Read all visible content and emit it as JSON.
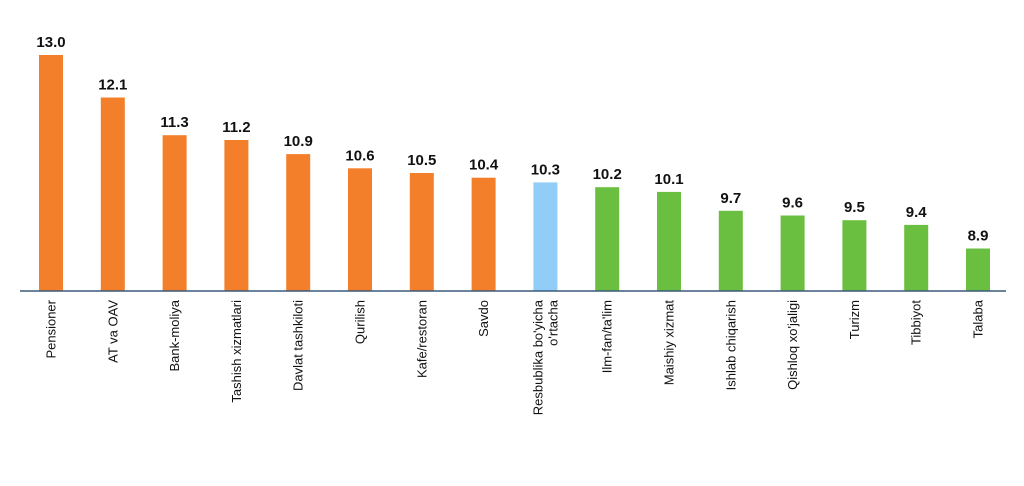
{
  "chart_data": {
    "type": "bar",
    "categories": [
      "Pensioner",
      "AT va OAV",
      "Bank-moliya",
      "Tashish xizmatlari",
      "Davlat tashkiloti",
      "Qurilish",
      "Kafe/restoran",
      "Savdo",
      "Resbublika bo'yicha o'rtacha",
      "Ilm-fan/ta'lim",
      "Maishiy xizmat",
      "Ishlab chiqarish",
      "Qishloq xo'jaligi",
      "Turizm",
      "Tibbiyot",
      "Talaba"
    ],
    "values": [
      13.0,
      12.1,
      11.3,
      11.2,
      10.9,
      10.6,
      10.5,
      10.4,
      10.3,
      10.2,
      10.1,
      9.7,
      9.6,
      9.5,
      9.4,
      8.9
    ],
    "value_labels": [
      "13.0",
      "12.1",
      "11.3",
      "11.2",
      "10.9",
      "10.6",
      "10.5",
      "10.4",
      "10.3",
      "10.2",
      "10.1",
      "9.7",
      "9.6",
      "9.5",
      "9.4",
      "8.9"
    ],
    "category_label_lines": [
      [
        "Pensioner"
      ],
      [
        "AT va OAV"
      ],
      [
        "Bank-moliya"
      ],
      [
        "Tashish xizmatlari"
      ],
      [
        "Davlat tashkiloti"
      ],
      [
        "Qurilish"
      ],
      [
        "Kafe/restoran"
      ],
      [
        "Savdo"
      ],
      [
        "Resbublika bo'yicha",
        "o'rtacha"
      ],
      [
        "Ilm-fan/ta'lim"
      ],
      [
        "Maishiy xizmat"
      ],
      [
        "Ishlab chiqarish"
      ],
      [
        "Qishloq xo'jaligi"
      ],
      [
        "Turizm"
      ],
      [
        "Tibbiyot"
      ],
      [
        "Talaba"
      ]
    ],
    "bar_colors": [
      "#f47f2b",
      "#f47f2b",
      "#f47f2b",
      "#f47f2b",
      "#f47f2b",
      "#f47f2b",
      "#f47f2b",
      "#f47f2b",
      "#92cdf8",
      "#6abf40",
      "#6abf40",
      "#6abf40",
      "#6abf40",
      "#6abf40",
      "#6abf40",
      "#6abf40"
    ],
    "colors": {
      "above_average": "#f47f2b",
      "average": "#92cdf8",
      "below_average": "#6abf40",
      "axis": "#3a5a7a"
    },
    "title": "",
    "xlabel": "",
    "ylabel": "",
    "baseline_value": 8.0,
    "ylim": [
      8.0,
      13.0
    ],
    "grid": false,
    "legend": "none"
  }
}
